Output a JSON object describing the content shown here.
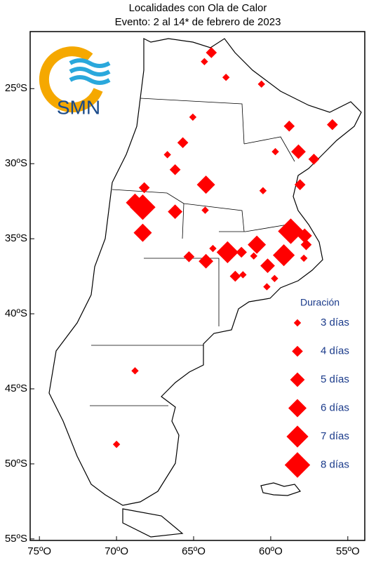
{
  "chart_data": {
    "type": "map",
    "title": "Localidades con Ola de Calor",
    "subtitle": "Evento: 2 al 14* de febrero de 2023",
    "logo": "SMN",
    "color": "#ff0000",
    "xlim": [
      -75.6,
      -53.9
    ],
    "ylim": [
      -55.1,
      -21.2
    ],
    "xticks": [
      {
        "value": -75,
        "label": "75ºO"
      },
      {
        "value": -70,
        "label": "70ºO"
      },
      {
        "value": -65,
        "label": "65ºO"
      },
      {
        "value": -60,
        "label": "60ºO"
      },
      {
        "value": -55,
        "label": "55ºO"
      }
    ],
    "yticks": [
      {
        "value": -25,
        "label": "25ºS"
      },
      {
        "value": -30,
        "label": "30ºS"
      },
      {
        "value": -35,
        "label": "35ºS"
      },
      {
        "value": -40,
        "label": "40ºS"
      },
      {
        "value": -45,
        "label": "45ºS"
      },
      {
        "value": -50,
        "label": "50ºS"
      },
      {
        "value": -55,
        "label": "55ºS"
      }
    ],
    "legend_title": "Duración",
    "legend": [
      {
        "value": 3,
        "label": "3 días"
      },
      {
        "value": 4,
        "label": "4 días"
      },
      {
        "value": 5,
        "label": "5 días"
      },
      {
        "value": 6,
        "label": "6 días"
      },
      {
        "value": 7,
        "label": "7 días"
      },
      {
        "value": 8,
        "label": "8 días"
      }
    ],
    "stations": {
      "lon": [
        -63.85,
        -64.3,
        -62.9,
        -60.6,
        -58.8,
        -56.0,
        -65.05,
        -65.7,
        -66.7,
        -66.2,
        -59.7,
        -58.2,
        -57.2,
        -58.1,
        -64.2,
        -68.2,
        -60.5,
        -64.25,
        -68.8,
        -68.3,
        -66.2,
        -68.3,
        -58.7,
        -57.8,
        -57.7,
        -63.75,
        -65.3,
        -64.2,
        -62.8,
        -61.9,
        -60.9,
        -59.15,
        -61.1,
        -60.2,
        -57.85,
        -62.3,
        -61.8,
        -59.75,
        -60.25,
        -68.8,
        -70.0
      ],
      "lat": [
        -22.6,
        -23.2,
        -24.25,
        -24.7,
        -27.5,
        -27.4,
        -26.9,
        -28.6,
        -29.4,
        -30.4,
        -29.2,
        -29.2,
        -29.7,
        -31.4,
        -31.4,
        -31.6,
        -31.8,
        -33.1,
        -32.6,
        -32.9,
        -33.2,
        -34.6,
        -34.5,
        -34.8,
        -35.4,
        -35.65,
        -36.2,
        -36.5,
        -35.9,
        -35.9,
        -35.4,
        -36.1,
        -36.15,
        -36.8,
        -36.3,
        -37.5,
        -37.4,
        -37.65,
        -38.2,
        -43.8,
        -48.7
      ],
      "duration": [
        4,
        3,
        3,
        3,
        4,
        4,
        3,
        4,
        3,
        4,
        3,
        5,
        4,
        4,
        6,
        4,
        3,
        3,
        6,
        8,
        5,
        6,
        8,
        5,
        4,
        3,
        4,
        5,
        7,
        4,
        6,
        7,
        3,
        5,
        3,
        4,
        3,
        3,
        3,
        3,
        3
      ]
    }
  }
}
